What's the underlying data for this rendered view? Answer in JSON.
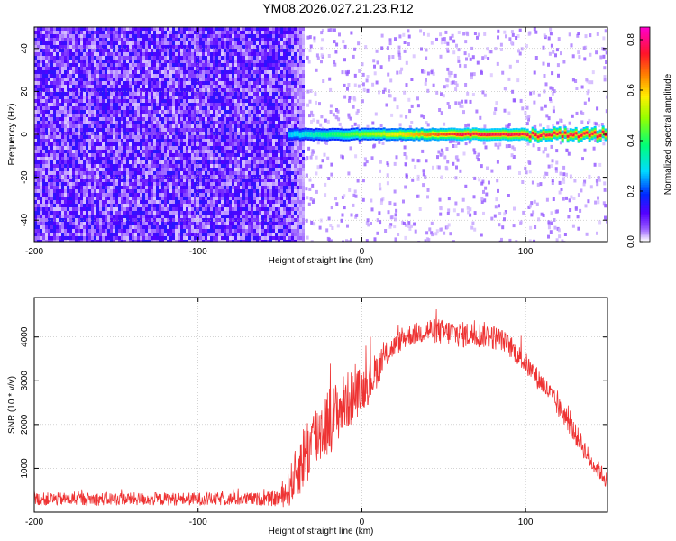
{
  "figure": {
    "title": "YM08.2026.027.21.23.R12"
  },
  "chart_data": [
    {
      "type": "heatmap",
      "title": "YM08.2026.027.21.23.R12",
      "xlabel": "Height of straight line (km)",
      "ylabel": "Frequency (Hz)",
      "xlim": [
        -200,
        150
      ],
      "ylim": [
        -50,
        50
      ],
      "xticks": [
        -200,
        -100,
        0,
        100
      ],
      "yticks": [
        -40,
        -20,
        0,
        20,
        40
      ],
      "colorbar": {
        "label": "Normalized spectral amplitude",
        "range": [
          0,
          0.85
        ],
        "ticks": [
          0.0,
          0.2,
          0.4,
          0.6,
          0.8
        ],
        "colormap": "rainbow"
      },
      "features": {
        "noise_region_x": [
          -200,
          -35
        ],
        "signal_line_frequency_hz": 0,
        "signal_x_range": [
          -45,
          150
        ],
        "signal_peak_amplitude": 0.85
      },
      "grid": true
    },
    {
      "type": "line",
      "title": "",
      "xlabel": "Height of straight line (km)",
      "ylabel": "SNR (10 * v/v)",
      "xlim": [
        -200,
        150
      ],
      "ylim": [
        0,
        4900
      ],
      "xticks": [
        -200,
        -100,
        0,
        100
      ],
      "yticks": [
        1000,
        2000,
        3000,
        4000
      ],
      "color": "#ee3333",
      "grid": true,
      "series": [
        {
          "x": [
            -200,
            -180,
            -160,
            -140,
            -120,
            -100,
            -80,
            -60,
            -50,
            -45,
            -40,
            -35,
            -30,
            -25,
            -20,
            -15,
            -10,
            -5,
            0,
            5,
            10,
            15,
            20,
            25,
            30,
            35,
            40,
            45,
            50,
            55,
            60,
            65,
            70,
            75,
            80,
            85,
            90,
            95,
            100,
            105,
            110,
            115,
            120,
            125,
            130,
            135,
            140,
            145,
            150
          ],
          "y": [
            300,
            300,
            300,
            300,
            300,
            300,
            300,
            300,
            320,
            500,
            900,
            1300,
            1600,
            1900,
            2100,
            2300,
            2500,
            2650,
            2800,
            3000,
            3300,
            3600,
            3800,
            3950,
            4050,
            4100,
            4150,
            4150,
            4100,
            4100,
            4050,
            4050,
            4050,
            4050,
            4000,
            3950,
            3800,
            3600,
            3400,
            3150,
            2950,
            2700,
            2400,
            2150,
            1800,
            1500,
            1150,
            950,
            700
          ],
          "noise_amplitude": [
            150,
            150,
            150,
            150,
            150,
            150,
            150,
            150,
            200,
            400,
            600,
            800,
            800,
            800,
            800,
            700,
            700,
            600,
            500,
            500,
            400,
            300,
            250,
            250,
            250,
            250,
            300,
            300,
            300,
            300,
            300,
            300,
            300,
            300,
            300,
            250,
            250,
            250,
            250,
            250,
            250,
            250,
            250,
            250,
            250,
            250,
            200,
            200,
            200
          ]
        }
      ]
    }
  ]
}
